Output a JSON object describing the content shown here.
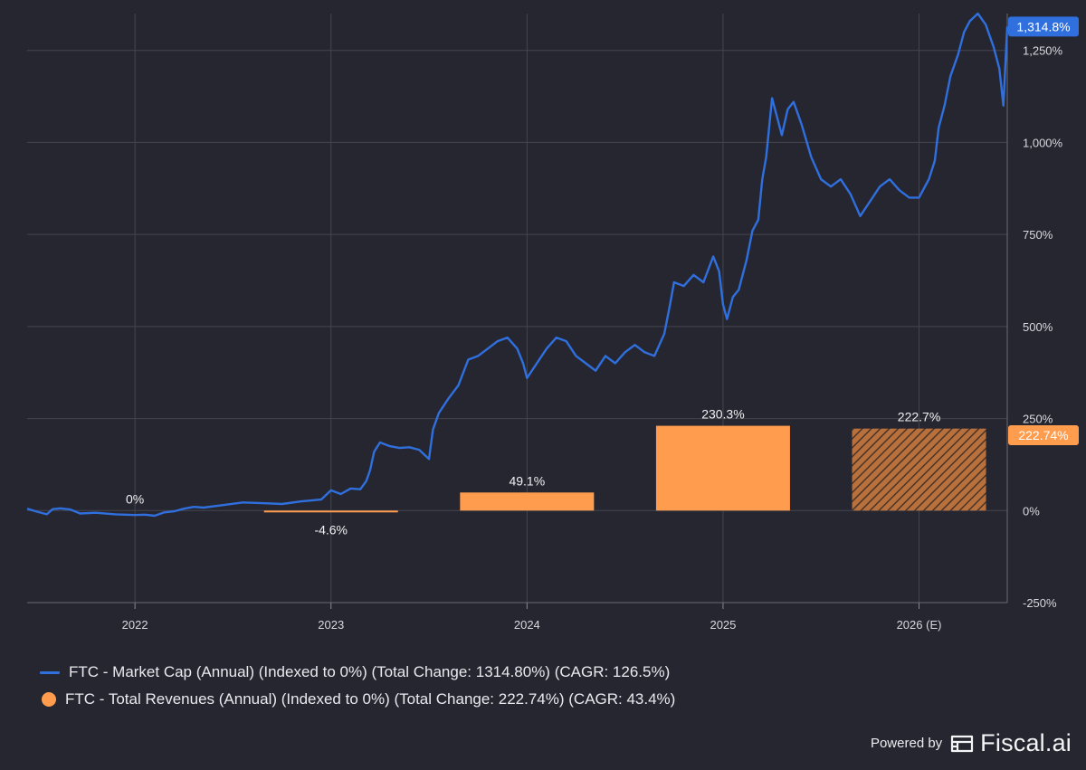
{
  "chart_data": {
    "type": "line+bar",
    "x_range": [
      2021.45,
      2026.45
    ],
    "y_range": [
      -250,
      1350
    ],
    "y_ticks": [
      {
        "value": -250,
        "label": "-250%"
      },
      {
        "value": 0,
        "label": "0%"
      },
      {
        "value": 250,
        "label": "250%"
      },
      {
        "value": 500,
        "label": "500%"
      },
      {
        "value": 750,
        "label": "750%"
      },
      {
        "value": 1000,
        "label": "1,000%"
      },
      {
        "value": 1250,
        "label": "1,250%"
      }
    ],
    "x_ticks": [
      {
        "value": 2022,
        "label": "2022"
      },
      {
        "value": 2023,
        "label": "2023"
      },
      {
        "value": 2024,
        "label": "2024"
      },
      {
        "value": 2025,
        "label": "2025"
      },
      {
        "value": 2026,
        "label": "2026 (E)"
      }
    ],
    "grid": true,
    "series": [
      {
        "name": "FTC - Market Cap (Annual) (Indexed to 0%) (Total Change: 1314.80%) (CAGR: 126.5%)",
        "type": "line",
        "color": "#2f6fde",
        "points": [
          [
            2021.45,
            5
          ],
          [
            2021.5,
            -3
          ],
          [
            2021.55,
            -10
          ],
          [
            2021.58,
            4
          ],
          [
            2021.62,
            6
          ],
          [
            2021.67,
            3
          ],
          [
            2021.72,
            -8
          ],
          [
            2021.8,
            -6
          ],
          [
            2021.9,
            -10
          ],
          [
            2022.0,
            -12
          ],
          [
            2022.05,
            -11
          ],
          [
            2022.1,
            -14
          ],
          [
            2022.15,
            -5
          ],
          [
            2022.2,
            -2
          ],
          [
            2022.25,
            5
          ],
          [
            2022.3,
            10
          ],
          [
            2022.35,
            8
          ],
          [
            2022.45,
            15
          ],
          [
            2022.55,
            22
          ],
          [
            2022.65,
            20
          ],
          [
            2022.75,
            18
          ],
          [
            2022.85,
            25
          ],
          [
            2022.95,
            30
          ],
          [
            2023.0,
            55
          ],
          [
            2023.05,
            45
          ],
          [
            2023.1,
            60
          ],
          [
            2023.15,
            58
          ],
          [
            2023.18,
            80
          ],
          [
            2023.2,
            110
          ],
          [
            2023.22,
            160
          ],
          [
            2023.25,
            185
          ],
          [
            2023.3,
            175
          ],
          [
            2023.35,
            170
          ],
          [
            2023.4,
            172
          ],
          [
            2023.45,
            165
          ],
          [
            2023.48,
            150
          ],
          [
            2023.5,
            140
          ],
          [
            2023.52,
            220
          ],
          [
            2023.55,
            265
          ],
          [
            2023.6,
            305
          ],
          [
            2023.65,
            340
          ],
          [
            2023.7,
            410
          ],
          [
            2023.75,
            420
          ],
          [
            2023.8,
            440
          ],
          [
            2023.85,
            460
          ],
          [
            2023.9,
            470
          ],
          [
            2023.95,
            440
          ],
          [
            2023.98,
            400
          ],
          [
            2024.0,
            360
          ],
          [
            2024.05,
            400
          ],
          [
            2024.1,
            440
          ],
          [
            2024.15,
            470
          ],
          [
            2024.2,
            460
          ],
          [
            2024.25,
            420
          ],
          [
            2024.3,
            400
          ],
          [
            2024.35,
            380
          ],
          [
            2024.4,
            420
          ],
          [
            2024.45,
            400
          ],
          [
            2024.5,
            430
          ],
          [
            2024.55,
            450
          ],
          [
            2024.6,
            430
          ],
          [
            2024.65,
            420
          ],
          [
            2024.7,
            480
          ],
          [
            2024.73,
            560
          ],
          [
            2024.75,
            620
          ],
          [
            2024.8,
            610
          ],
          [
            2024.85,
            640
          ],
          [
            2024.9,
            620
          ],
          [
            2024.95,
            690
          ],
          [
            2024.98,
            650
          ],
          [
            2025.0,
            560
          ],
          [
            2025.02,
            520
          ],
          [
            2025.05,
            580
          ],
          [
            2025.08,
            600
          ],
          [
            2025.12,
            680
          ],
          [
            2025.15,
            760
          ],
          [
            2025.18,
            790
          ],
          [
            2025.2,
            900
          ],
          [
            2025.22,
            960
          ],
          [
            2025.25,
            1120
          ],
          [
            2025.28,
            1060
          ],
          [
            2025.3,
            1020
          ],
          [
            2025.33,
            1090
          ],
          [
            2025.36,
            1110
          ],
          [
            2025.4,
            1050
          ],
          [
            2025.45,
            960
          ],
          [
            2025.5,
            900
          ],
          [
            2025.55,
            880
          ],
          [
            2025.6,
            900
          ],
          [
            2025.65,
            860
          ],
          [
            2025.7,
            800
          ],
          [
            2025.75,
            840
          ],
          [
            2025.8,
            880
          ],
          [
            2025.85,
            900
          ],
          [
            2025.9,
            870
          ],
          [
            2025.95,
            850
          ],
          [
            2026.0,
            850
          ],
          [
            2026.05,
            900
          ],
          [
            2026.08,
            950
          ],
          [
            2026.1,
            1040
          ],
          [
            2026.13,
            1100
          ],
          [
            2026.16,
            1180
          ],
          [
            2026.2,
            1240
          ],
          [
            2026.23,
            1300
          ],
          [
            2026.26,
            1330
          ],
          [
            2026.3,
            1350
          ],
          [
            2026.34,
            1320
          ],
          [
            2026.38,
            1260
          ],
          [
            2026.41,
            1200
          ],
          [
            2026.43,
            1100
          ],
          [
            2026.45,
            1314.8
          ]
        ],
        "end_label": "1,314.8%"
      },
      {
        "name": "FTC - Total Revenues (Annual) (Indexed to 0%) (Total Change: 222.74%) (CAGR: 43.4%)",
        "type": "bar",
        "color": "#ff9c4d",
        "bars": [
          {
            "x": 2022,
            "value": 0,
            "label": "0%",
            "estimate": false
          },
          {
            "x": 2023,
            "value": -4.6,
            "label": "-4.6%",
            "estimate": false
          },
          {
            "x": 2024,
            "value": 49.1,
            "label": "49.1%",
            "estimate": false
          },
          {
            "x": 2025,
            "value": 230.3,
            "label": "230.3%",
            "estimate": false
          },
          {
            "x": 2026,
            "value": 222.7,
            "label": "222.7%",
            "estimate": true
          }
        ],
        "end_label": "222.74%"
      }
    ]
  },
  "legend": {
    "market_cap": "FTC - Market Cap (Annual) (Indexed to 0%) (Total Change: 1314.80%) (CAGR: 126.5%)",
    "revenues": "FTC - Total Revenues (Annual) (Indexed to 0%) (Total Change: 222.74%) (CAGR: 43.4%)"
  },
  "branding": {
    "powered_by": "Powered by",
    "name": "Fiscal.ai"
  }
}
